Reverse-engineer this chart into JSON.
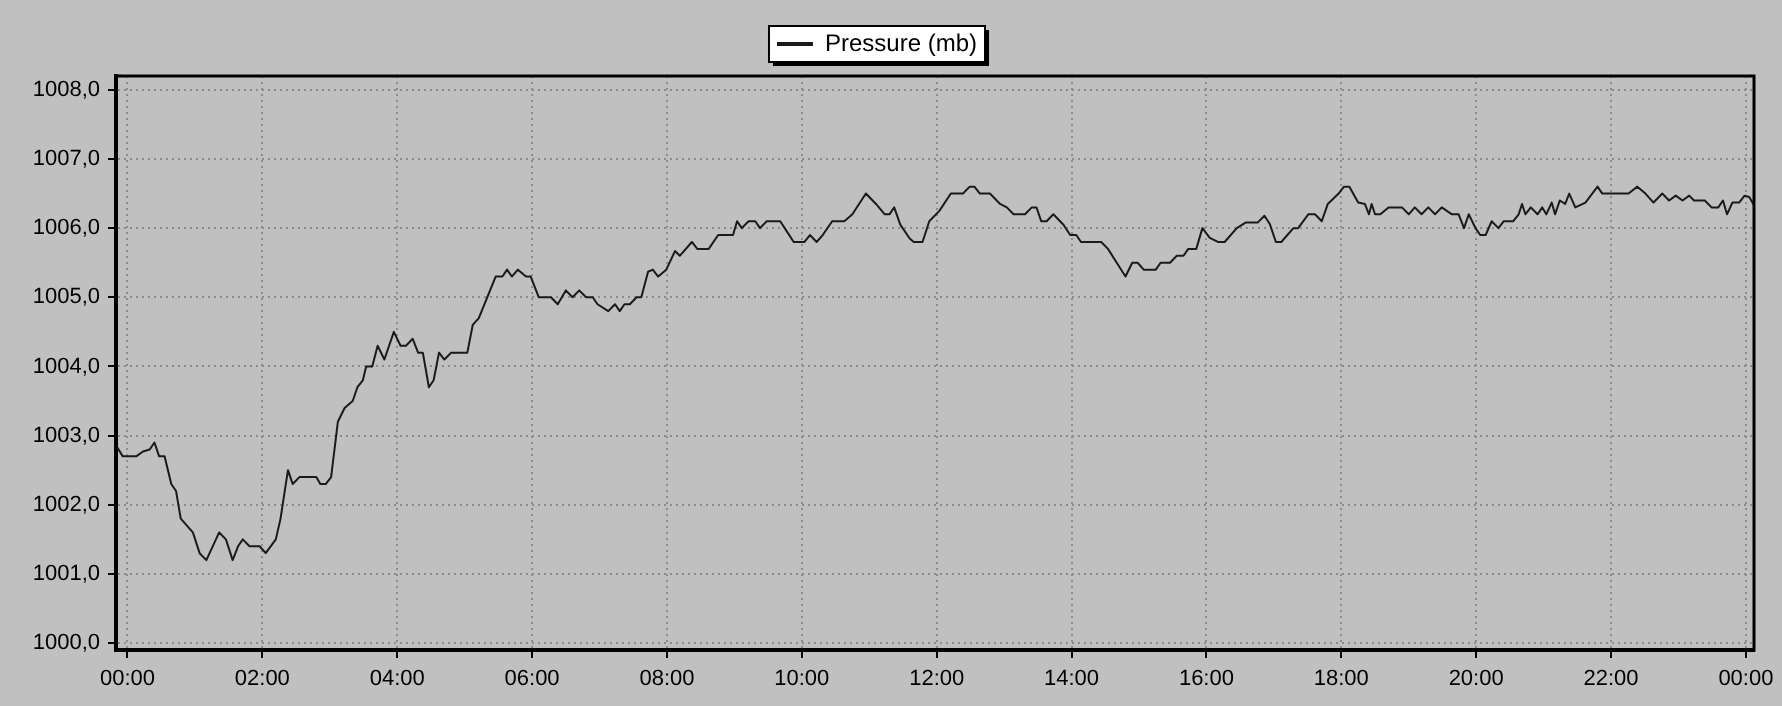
{
  "chart_data": {
    "type": "line",
    "legend": "top",
    "grid": true,
    "marker": "none",
    "line_style": "solid",
    "xlim": [
      -0.17,
      24.12
    ],
    "ylim": [
      999.9,
      1008.2
    ],
    "xticks": [
      {
        "value": 0,
        "label": "00:00"
      },
      {
        "value": 2,
        "label": "02:00"
      },
      {
        "value": 4,
        "label": "04:00"
      },
      {
        "value": 6,
        "label": "06:00"
      },
      {
        "value": 8,
        "label": "08:00"
      },
      {
        "value": 10,
        "label": "10:00"
      },
      {
        "value": 12,
        "label": "12:00"
      },
      {
        "value": 14,
        "label": "14:00"
      },
      {
        "value": 16,
        "label": "16:00"
      },
      {
        "value": 18,
        "label": "18:00"
      },
      {
        "value": 20,
        "label": "20:00"
      },
      {
        "value": 22,
        "label": "22:00"
      },
      {
        "value": 24,
        "label": "00:00"
      }
    ],
    "yticks": [
      {
        "value": 1000,
        "label": "1000,0"
      },
      {
        "value": 1001,
        "label": "1001,0"
      },
      {
        "value": 1002,
        "label": "1002,0"
      },
      {
        "value": 1003,
        "label": "1003,0"
      },
      {
        "value": 1004,
        "label": "1004,0"
      },
      {
        "value": 1005,
        "label": "1005,0"
      },
      {
        "value": 1006,
        "label": "1006,0"
      },
      {
        "value": 1007,
        "label": "1007,0"
      },
      {
        "value": 1008,
        "label": "1008,0"
      }
    ],
    "x": [
      -0.17,
      -0.07,
      0.13,
      0.23,
      0.33,
      0.4,
      0.47,
      0.55,
      0.65,
      0.72,
      0.79,
      0.97,
      1.07,
      1.17,
      1.36,
      1.46,
      1.56,
      1.64,
      1.71,
      1.81,
      1.96,
      2.05,
      2.2,
      2.27,
      2.38,
      2.45,
      2.55,
      2.8,
      2.86,
      2.94,
      3.02,
      3.12,
      3.22,
      3.34,
      3.41,
      3.49,
      3.54,
      3.63,
      3.71,
      3.81,
      3.95,
      4.05,
      4.13,
      4.23,
      4.31,
      4.38,
      4.47,
      4.54,
      4.62,
      4.7,
      4.8,
      5.04,
      5.12,
      5.21,
      5.46,
      5.56,
      5.63,
      5.7,
      5.79,
      5.91,
      5.98,
      6.1,
      6.28,
      6.38,
      6.5,
      6.6,
      6.7,
      6.8,
      6.9,
      6.97,
      7.13,
      7.23,
      7.3,
      7.37,
      7.45,
      7.55,
      7.62,
      7.72,
      7.79,
      7.87,
      7.99,
      8.12,
      8.19,
      8.37,
      8.45,
      8.62,
      8.76,
      8.98,
      9.04,
      9.11,
      9.21,
      9.31,
      9.38,
      9.48,
      9.68,
      9.78,
      9.88,
      10.04,
      10.12,
      10.22,
      10.31,
      10.45,
      10.63,
      10.75,
      10.95,
      11.1,
      11.23,
      11.3,
      11.37,
      11.46,
      11.6,
      11.66,
      11.79,
      11.89,
      12.04,
      12.21,
      12.39,
      12.49,
      12.56,
      12.64,
      12.79,
      12.94,
      13.04,
      13.14,
      13.31,
      13.41,
      13.48,
      13.55,
      13.63,
      13.73,
      13.88,
      13.98,
      14.07,
      14.14,
      14.44,
      14.54,
      14.67,
      14.8,
      14.9,
      14.98,
      15.07,
      15.25,
      15.32,
      15.46,
      15.56,
      15.66,
      15.73,
      15.85,
      15.94,
      16.05,
      16.17,
      16.27,
      16.45,
      16.58,
      16.76,
      16.86,
      16.94,
      17.03,
      17.11,
      17.29,
      17.36,
      17.51,
      17.61,
      17.71,
      17.8,
      17.96,
      18.04,
      18.12,
      18.25,
      18.35,
      18.41,
      18.45,
      18.5,
      18.58,
      18.7,
      18.9,
      19.0,
      19.09,
      19.19,
      19.29,
      19.39,
      19.49,
      19.64,
      19.74,
      19.82,
      19.89,
      19.99,
      20.06,
      20.14,
      20.23,
      20.33,
      20.41,
      20.55,
      20.63,
      20.68,
      20.73,
      20.81,
      20.91,
      20.98,
      21.04,
      21.12,
      21.17,
      21.24,
      21.32,
      21.38,
      21.47,
      21.62,
      21.8,
      21.87,
      22.26,
      22.39,
      22.51,
      22.63,
      22.76,
      22.86,
      22.96,
      23.06,
      23.16,
      23.23,
      23.39,
      23.49,
      23.59,
      23.66,
      23.72,
      23.8,
      23.9,
      23.98,
      24.05,
      24.12
    ],
    "series": [
      {
        "name": "Pressure (mb)",
        "color": "#1a1a1a",
        "values": [
          1002.86,
          1002.7,
          1002.7,
          1002.77,
          1002.8,
          1002.9,
          1002.7,
          1002.7,
          1002.3,
          1002.2,
          1001.8,
          1001.6,
          1001.3,
          1001.2,
          1001.6,
          1001.5,
          1001.2,
          1001.4,
          1001.5,
          1001.4,
          1001.4,
          1001.3,
          1001.5,
          1001.8,
          1002.5,
          1002.3,
          1002.4,
          1002.4,
          1002.3,
          1002.3,
          1002.4,
          1003.2,
          1003.4,
          1003.5,
          1003.7,
          1003.8,
          1004.0,
          1004.0,
          1004.3,
          1004.1,
          1004.5,
          1004.3,
          1004.3,
          1004.4,
          1004.2,
          1004.2,
          1003.7,
          1003.8,
          1004.2,
          1004.1,
          1004.2,
          1004.2,
          1004.6,
          1004.7,
          1005.3,
          1005.3,
          1005.4,
          1005.3,
          1005.4,
          1005.3,
          1005.3,
          1005.0,
          1005.0,
          1004.9,
          1005.1,
          1005.0,
          1005.1,
          1005.0,
          1005.0,
          1004.9,
          1004.8,
          1004.9,
          1004.8,
          1004.9,
          1004.9,
          1005.0,
          1005.0,
          1005.37,
          1005.4,
          1005.3,
          1005.4,
          1005.67,
          1005.6,
          1005.8,
          1005.7,
          1005.7,
          1005.9,
          1005.9,
          1006.1,
          1006.0,
          1006.1,
          1006.1,
          1006.0,
          1006.1,
          1006.1,
          1005.95,
          1005.8,
          1005.8,
          1005.9,
          1005.8,
          1005.9,
          1006.1,
          1006.1,
          1006.2,
          1006.5,
          1006.35,
          1006.2,
          1006.2,
          1006.3,
          1006.05,
          1005.85,
          1005.8,
          1005.8,
          1006.1,
          1006.25,
          1006.5,
          1006.5,
          1006.6,
          1006.6,
          1006.5,
          1006.5,
          1006.35,
          1006.3,
          1006.2,
          1006.2,
          1006.3,
          1006.3,
          1006.1,
          1006.1,
          1006.2,
          1006.05,
          1005.9,
          1005.9,
          1005.8,
          1005.8,
          1005.7,
          1005.5,
          1005.3,
          1005.5,
          1005.5,
          1005.4,
          1005.4,
          1005.5,
          1005.5,
          1005.6,
          1005.6,
          1005.7,
          1005.7,
          1006.0,
          1005.86,
          1005.8,
          1005.8,
          1006.0,
          1006.08,
          1006.08,
          1006.18,
          1006.06,
          1005.8,
          1005.8,
          1006.0,
          1006.0,
          1006.2,
          1006.2,
          1006.1,
          1006.35,
          1006.5,
          1006.6,
          1006.6,
          1006.37,
          1006.35,
          1006.2,
          1006.35,
          1006.2,
          1006.2,
          1006.3,
          1006.3,
          1006.2,
          1006.3,
          1006.2,
          1006.3,
          1006.2,
          1006.3,
          1006.2,
          1006.2,
          1006.0,
          1006.2,
          1006.0,
          1005.9,
          1005.9,
          1006.1,
          1006.0,
          1006.1,
          1006.1,
          1006.2,
          1006.35,
          1006.2,
          1006.3,
          1006.2,
          1006.3,
          1006.2,
          1006.37,
          1006.2,
          1006.4,
          1006.35,
          1006.5,
          1006.3,
          1006.37,
          1006.6,
          1006.5,
          1006.5,
          1006.6,
          1006.5,
          1006.37,
          1006.5,
          1006.4,
          1006.47,
          1006.4,
          1006.47,
          1006.4,
          1006.4,
          1006.3,
          1006.3,
          1006.4,
          1006.2,
          1006.37,
          1006.37,
          1006.47,
          1006.45,
          1006.33
        ]
      }
    ]
  }
}
